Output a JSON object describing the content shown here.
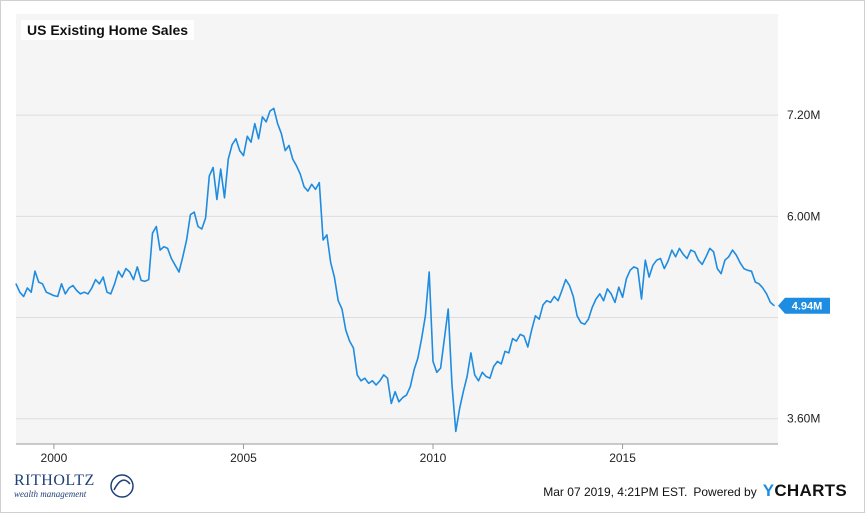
{
  "chart_data": {
    "type": "line",
    "title": "US Existing Home Sales",
    "x_tick_labels": [
      "2000",
      "2005",
      "2010",
      "2015"
    ],
    "y_tick_labels": [
      "7.20M",
      "6.00M",
      "3.60M"
    ],
    "ylim": [
      3.3,
      8.4
    ],
    "xlim": [
      1999.0,
      2019.1
    ],
    "grid": true,
    "current_value_label": "4.94M",
    "series": [
      {
        "points": [
          [
            1999.0,
            5.2
          ],
          [
            1999.1,
            5.1
          ],
          [
            1999.2,
            5.05
          ],
          [
            1999.3,
            5.15
          ],
          [
            1999.4,
            5.1
          ],
          [
            1999.5,
            5.35
          ],
          [
            1999.6,
            5.22
          ],
          [
            1999.7,
            5.2
          ],
          [
            1999.8,
            5.1
          ],
          [
            1999.9,
            5.08
          ],
          [
            2000.0,
            5.06
          ],
          [
            2000.1,
            5.05
          ],
          [
            2000.2,
            5.2
          ],
          [
            2000.3,
            5.08
          ],
          [
            2000.4,
            5.15
          ],
          [
            2000.5,
            5.18
          ],
          [
            2000.6,
            5.12
          ],
          [
            2000.7,
            5.08
          ],
          [
            2000.8,
            5.1
          ],
          [
            2000.9,
            5.08
          ],
          [
            2001.0,
            5.15
          ],
          [
            2001.1,
            5.25
          ],
          [
            2001.2,
            5.2
          ],
          [
            2001.3,
            5.28
          ],
          [
            2001.4,
            5.1
          ],
          [
            2001.5,
            5.08
          ],
          [
            2001.6,
            5.2
          ],
          [
            2001.7,
            5.35
          ],
          [
            2001.8,
            5.28
          ],
          [
            2001.9,
            5.38
          ],
          [
            2002.0,
            5.34
          ],
          [
            2002.1,
            5.25
          ],
          [
            2002.2,
            5.4
          ],
          [
            2002.3,
            5.24
          ],
          [
            2002.4,
            5.23
          ],
          [
            2002.5,
            5.25
          ],
          [
            2002.6,
            5.8
          ],
          [
            2002.7,
            5.88
          ],
          [
            2002.8,
            5.6
          ],
          [
            2002.9,
            5.64
          ],
          [
            2003.0,
            5.62
          ],
          [
            2003.1,
            5.5
          ],
          [
            2003.2,
            5.42
          ],
          [
            2003.3,
            5.34
          ],
          [
            2003.4,
            5.52
          ],
          [
            2003.5,
            5.72
          ],
          [
            2003.6,
            6.02
          ],
          [
            2003.7,
            6.05
          ],
          [
            2003.8,
            5.88
          ],
          [
            2003.9,
            5.85
          ],
          [
            2004.0,
            5.98
          ],
          [
            2004.1,
            6.48
          ],
          [
            2004.2,
            6.58
          ],
          [
            2004.3,
            6.2
          ],
          [
            2004.4,
            6.56
          ],
          [
            2004.5,
            6.22
          ],
          [
            2004.6,
            6.68
          ],
          [
            2004.7,
            6.85
          ],
          [
            2004.8,
            6.92
          ],
          [
            2004.9,
            6.78
          ],
          [
            2005.0,
            6.72
          ],
          [
            2005.1,
            6.95
          ],
          [
            2005.2,
            6.88
          ],
          [
            2005.3,
            7.1
          ],
          [
            2005.4,
            6.92
          ],
          [
            2005.5,
            7.18
          ],
          [
            2005.6,
            7.12
          ],
          [
            2005.7,
            7.25
          ],
          [
            2005.8,
            7.28
          ],
          [
            2005.9,
            7.1
          ],
          [
            2006.0,
            6.98
          ],
          [
            2006.1,
            6.78
          ],
          [
            2006.2,
            6.84
          ],
          [
            2006.3,
            6.68
          ],
          [
            2006.4,
            6.6
          ],
          [
            2006.5,
            6.5
          ],
          [
            2006.6,
            6.35
          ],
          [
            2006.7,
            6.3
          ],
          [
            2006.8,
            6.38
          ],
          [
            2006.9,
            6.32
          ],
          [
            2007.0,
            6.4
          ],
          [
            2007.1,
            5.72
          ],
          [
            2007.2,
            5.78
          ],
          [
            2007.3,
            5.45
          ],
          [
            2007.4,
            5.28
          ],
          [
            2007.5,
            5.0
          ],
          [
            2007.6,
            4.9
          ],
          [
            2007.7,
            4.65
          ],
          [
            2007.8,
            4.52
          ],
          [
            2007.9,
            4.44
          ],
          [
            2008.0,
            4.12
          ],
          [
            2008.1,
            4.05
          ],
          [
            2008.2,
            4.08
          ],
          [
            2008.3,
            4.02
          ],
          [
            2008.4,
            4.05
          ],
          [
            2008.5,
            4.0
          ],
          [
            2008.6,
            4.05
          ],
          [
            2008.7,
            4.12
          ],
          [
            2008.8,
            4.08
          ],
          [
            2008.9,
            3.78
          ],
          [
            2009.0,
            3.92
          ],
          [
            2009.1,
            3.8
          ],
          [
            2009.2,
            3.85
          ],
          [
            2009.3,
            3.88
          ],
          [
            2009.4,
            3.98
          ],
          [
            2009.5,
            4.18
          ],
          [
            2009.6,
            4.32
          ],
          [
            2009.7,
            4.55
          ],
          [
            2009.8,
            4.82
          ],
          [
            2009.9,
            5.34
          ],
          [
            2010.0,
            4.28
          ],
          [
            2010.1,
            4.15
          ],
          [
            2010.2,
            4.2
          ],
          [
            2010.3,
            4.55
          ],
          [
            2010.4,
            4.9
          ],
          [
            2010.5,
            4.0
          ],
          [
            2010.6,
            3.45
          ],
          [
            2010.7,
            3.72
          ],
          [
            2010.8,
            3.92
          ],
          [
            2010.9,
            4.1
          ],
          [
            2011.0,
            4.38
          ],
          [
            2011.1,
            4.12
          ],
          [
            2011.2,
            4.05
          ],
          [
            2011.3,
            4.15
          ],
          [
            2011.4,
            4.1
          ],
          [
            2011.5,
            4.08
          ],
          [
            2011.6,
            4.22
          ],
          [
            2011.7,
            4.28
          ],
          [
            2011.8,
            4.25
          ],
          [
            2011.9,
            4.4
          ],
          [
            2012.0,
            4.38
          ],
          [
            2012.1,
            4.55
          ],
          [
            2012.2,
            4.52
          ],
          [
            2012.3,
            4.6
          ],
          [
            2012.4,
            4.58
          ],
          [
            2012.5,
            4.45
          ],
          [
            2012.6,
            4.65
          ],
          [
            2012.7,
            4.82
          ],
          [
            2012.8,
            4.78
          ],
          [
            2012.9,
            4.95
          ],
          [
            2013.0,
            5.0
          ],
          [
            2013.1,
            4.98
          ],
          [
            2013.2,
            5.05
          ],
          [
            2013.3,
            5.0
          ],
          [
            2013.4,
            5.12
          ],
          [
            2013.5,
            5.25
          ],
          [
            2013.6,
            5.18
          ],
          [
            2013.7,
            5.05
          ],
          [
            2013.8,
            4.82
          ],
          [
            2013.9,
            4.74
          ],
          [
            2014.0,
            4.72
          ],
          [
            2014.1,
            4.78
          ],
          [
            2014.2,
            4.92
          ],
          [
            2014.3,
            5.02
          ],
          [
            2014.4,
            5.08
          ],
          [
            2014.5,
            5.0
          ],
          [
            2014.6,
            5.14
          ],
          [
            2014.7,
            5.08
          ],
          [
            2014.8,
            4.98
          ],
          [
            2014.9,
            5.16
          ],
          [
            2015.0,
            5.04
          ],
          [
            2015.1,
            5.26
          ],
          [
            2015.2,
            5.36
          ],
          [
            2015.3,
            5.4
          ],
          [
            2015.4,
            5.38
          ],
          [
            2015.5,
            5.02
          ],
          [
            2015.6,
            5.48
          ],
          [
            2015.7,
            5.28
          ],
          [
            2015.8,
            5.42
          ],
          [
            2015.9,
            5.48
          ],
          [
            2016.0,
            5.5
          ],
          [
            2016.1,
            5.38
          ],
          [
            2016.2,
            5.47
          ],
          [
            2016.3,
            5.6
          ],
          [
            2016.4,
            5.52
          ],
          [
            2016.5,
            5.62
          ],
          [
            2016.6,
            5.55
          ],
          [
            2016.7,
            5.5
          ],
          [
            2016.8,
            5.6
          ],
          [
            2016.9,
            5.58
          ],
          [
            2017.0,
            5.48
          ],
          [
            2017.1,
            5.43
          ],
          [
            2017.2,
            5.52
          ],
          [
            2017.3,
            5.62
          ],
          [
            2017.4,
            5.58
          ],
          [
            2017.5,
            5.38
          ],
          [
            2017.6,
            5.32
          ],
          [
            2017.7,
            5.48
          ],
          [
            2017.8,
            5.52
          ],
          [
            2017.9,
            5.6
          ],
          [
            2018.0,
            5.54
          ],
          [
            2018.1,
            5.45
          ],
          [
            2018.2,
            5.38
          ],
          [
            2018.3,
            5.36
          ],
          [
            2018.4,
            5.35
          ],
          [
            2018.5,
            5.22
          ],
          [
            2018.6,
            5.2
          ],
          [
            2018.7,
            5.15
          ],
          [
            2018.8,
            5.08
          ],
          [
            2018.9,
            4.98
          ],
          [
            2019.0,
            4.94
          ]
        ]
      }
    ]
  },
  "footer": {
    "timestamp": "Mar 07 2019, 4:21PM EST.",
    "powered_by": "Powered by",
    "brand_y": "Y",
    "brand_rest": "CHARTS"
  },
  "logo": {
    "name": "RITHOLTZ",
    "sub": "wealth management"
  },
  "colors": {
    "line": "#1e8ce0",
    "plot_bg": "#f5f5f5",
    "grid": "#dddddd"
  }
}
